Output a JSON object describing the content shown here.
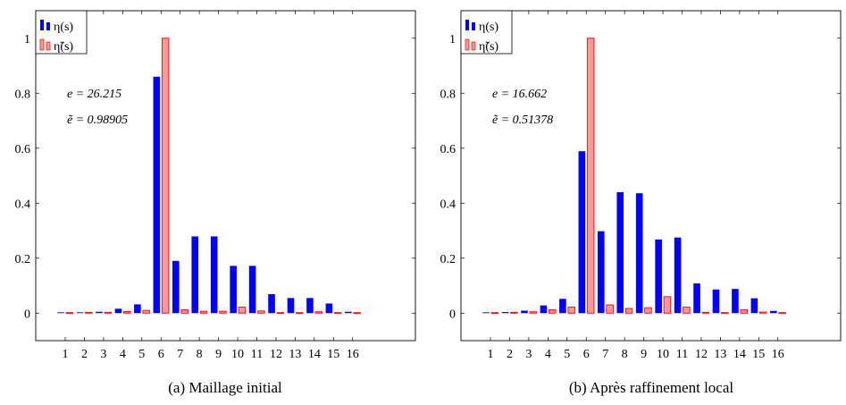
{
  "chart_data": [
    {
      "type": "bar",
      "caption": "(a)  Maillage initial",
      "categories": [
        "1",
        "2",
        "3",
        "4",
        "5",
        "6",
        "7",
        "8",
        "9",
        "10",
        "11",
        "12",
        "13",
        "14",
        "15",
        "16"
      ],
      "ylim": [
        -0.1,
        1.1
      ],
      "yticks": [
        "0",
        "0.2",
        "0.4",
        "0.6",
        "0.8",
        "1"
      ],
      "legend_placement": "top-left",
      "series": [
        {
          "name": "η(s)",
          "color": "#0000ff",
          "values": [
            0.003,
            0.003,
            0.005,
            0.016,
            0.032,
            0.86,
            0.19,
            0.279,
            0.279,
            0.172,
            0.172,
            0.069,
            0.055,
            0.055,
            0.035,
            0.005
          ]
        },
        {
          "name": "η̃(s)",
          "color": "#ff9999",
          "edge": "#ff0000",
          "values": [
            0.002,
            0.003,
            0.003,
            0.006,
            0.01,
            1.0,
            0.012,
            0.007,
            0.007,
            0.022,
            0.008,
            0.002,
            0.002,
            0.005,
            0.002,
            0.002
          ]
        }
      ],
      "annotations": [
        "e = 26.215",
        "ẽ = 0.98905"
      ]
    },
    {
      "type": "bar",
      "caption": "(b)  Après raffinement local",
      "categories": [
        "1",
        "2",
        "3",
        "4",
        "5",
        "6",
        "7",
        "8",
        "9",
        "10",
        "11",
        "12",
        "13",
        "14",
        "15",
        "16"
      ],
      "ylim": [
        -0.1,
        1.1
      ],
      "yticks": [
        "0",
        "0.2",
        "0.4",
        "0.6",
        "0.8",
        "1"
      ],
      "legend_placement": "top-left",
      "series": [
        {
          "name": "η(s)",
          "color": "#0000ff",
          "values": [
            0.003,
            0.004,
            0.009,
            0.028,
            0.052,
            0.589,
            0.298,
            0.44,
            0.436,
            0.268,
            0.275,
            0.108,
            0.086,
            0.088,
            0.054,
            0.008
          ]
        },
        {
          "name": "η̃(s)",
          "color": "#ff9999",
          "edge": "#ff0000",
          "values": [
            0.002,
            0.003,
            0.005,
            0.012,
            0.022,
            1.0,
            0.03,
            0.017,
            0.02,
            0.06,
            0.022,
            0.003,
            0.002,
            0.012,
            0.004,
            0.002
          ]
        }
      ],
      "annotations": [
        "e = 16.662",
        "ẽ = 0.51378"
      ]
    }
  ]
}
